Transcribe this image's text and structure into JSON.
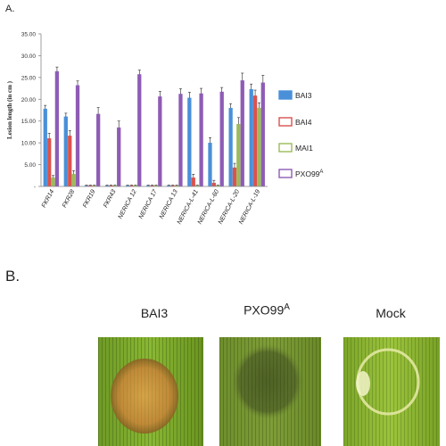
{
  "panel_a_label": "A.",
  "panel_b_label": "B.",
  "chart_data": {
    "type": "bar",
    "ylabel": "Lesion length (in cm )",
    "ylim": [
      0,
      35
    ],
    "yticks": [
      "35.00",
      "30.00",
      "25.00",
      "20.00",
      "15.00",
      "10.00",
      "5.00",
      "-"
    ],
    "ytick_values": [
      35,
      30,
      25,
      20,
      15,
      10,
      5,
      0
    ],
    "categories": [
      "FKR14",
      "FKR28",
      "FKR19",
      "FKR43",
      "NERICA 12",
      "NERICA 17",
      "NERICA 13",
      "NERICA-L-41",
      "NERICA-L-60",
      "NERICA-L-20",
      "NERICA-L-19"
    ],
    "series": [
      {
        "name": "BAI3",
        "color": "#4a90d9",
        "values": [
          17.8,
          16.0,
          0.2,
          0.2,
          0.2,
          0.2,
          0.2,
          20.3,
          10.0,
          18.0,
          22.3
        ],
        "errors": [
          0.8,
          0.8,
          0.1,
          0.1,
          0.1,
          0.1,
          0.1,
          1.3,
          1.2,
          1.0,
          1.2
        ]
      },
      {
        "name": "BAI4",
        "color": "#d9534f",
        "values": [
          11.0,
          11.6,
          0.2,
          0.2,
          0.2,
          0.2,
          0.2,
          2.0,
          0.8,
          4.3,
          20.8
        ],
        "errors": [
          1.2,
          1.2,
          0.1,
          0.1,
          0.1,
          0.1,
          0.1,
          0.8,
          0.6,
          1.0,
          1.3
        ]
      },
      {
        "name": "MAI1",
        "color": "#9bbb59",
        "values": [
          2.0,
          2.8,
          0.2,
          0.2,
          0.2,
          0.2,
          0.2,
          0.2,
          0.2,
          14.3,
          18.0
        ],
        "errors": [
          0.5,
          0.8,
          0.1,
          0.1,
          0.1,
          0.1,
          0.1,
          0.1,
          0.1,
          1.5,
          1.2
        ]
      },
      {
        "name": "PXO99",
        "name_sup": "A",
        "color": "#8e5cb5",
        "values": [
          26.4,
          23.2,
          16.6,
          13.5,
          25.7,
          20.6,
          21.2,
          21.3,
          21.7,
          24.3,
          23.8
        ],
        "errors": [
          1.0,
          1.0,
          1.5,
          1.5,
          1.0,
          1.2,
          1.2,
          1.2,
          1.0,
          1.7,
          1.7
        ]
      }
    ],
    "legend_position": "right"
  },
  "panel_b": {
    "leaves": [
      {
        "caption": "BAI3",
        "lesion_color": "#c99a3a"
      },
      {
        "caption": "PXO99",
        "caption_sup": "A",
        "lesion_color": "#5c6b2a"
      },
      {
        "caption": "Mock",
        "lesion_color": "#e8e8a8"
      }
    ]
  }
}
